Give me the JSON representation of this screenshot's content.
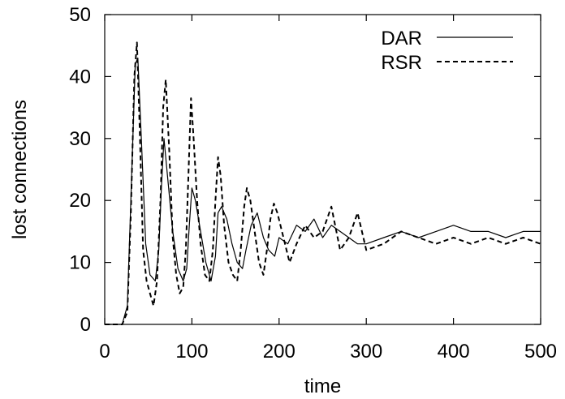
{
  "chart_data": {
    "type": "line",
    "title": "",
    "xlabel": "time",
    "ylabel": "lost connections",
    "xlim": [
      0,
      500
    ],
    "ylim": [
      0,
      50
    ],
    "xticks": [
      "0",
      "100",
      "200",
      "300",
      "400",
      "500"
    ],
    "yticks": [
      "0",
      "10",
      "20",
      "30",
      "40",
      "50"
    ],
    "grid": false,
    "legend_position": "top-right",
    "series": [
      {
        "name": "DAR",
        "style": "solid",
        "color": "#000000",
        "x": [
          0,
          10,
          20,
          26,
          30,
          35,
          38,
          42,
          47,
          52,
          58,
          62,
          65,
          68,
          72,
          78,
          84,
          90,
          94,
          97,
          100,
          104,
          110,
          116,
          122,
          127,
          130,
          134,
          140,
          146,
          152,
          158,
          162,
          168,
          175,
          182,
          188,
          195,
          200,
          210,
          220,
          230,
          240,
          250,
          260,
          270,
          280,
          290,
          300,
          320,
          340,
          360,
          380,
          400,
          420,
          440,
          460,
          480,
          500
        ],
        "y": [
          0,
          0,
          0,
          3,
          20,
          42,
          43,
          30,
          13,
          8,
          7,
          12,
          22,
          30,
          24,
          15,
          9,
          7,
          9,
          16,
          22,
          20,
          15,
          10,
          7,
          11,
          18,
          19,
          17,
          13,
          10,
          9,
          12,
          16,
          18,
          14,
          12,
          11,
          14,
          13,
          16,
          15,
          17,
          14,
          16,
          15,
          14,
          13,
          13,
          14,
          15,
          14,
          15,
          16,
          15,
          15,
          14,
          15,
          15
        ]
      },
      {
        "name": "RSR",
        "style": "dashed",
        "color": "#000000",
        "x": [
          0,
          10,
          20,
          26,
          30,
          34,
          37,
          40,
          44,
          48,
          52,
          56,
          60,
          64,
          67,
          70,
          74,
          78,
          82,
          86,
          90,
          93,
          96,
          99,
          102,
          106,
          110,
          115,
          120,
          124,
          127,
          130,
          133,
          137,
          142,
          147,
          152,
          156,
          160,
          163,
          167,
          172,
          177,
          182,
          186,
          190,
          194,
          198,
          205,
          212,
          220,
          230,
          240,
          250,
          260,
          270,
          280,
          290,
          300,
          320,
          340,
          360,
          380,
          400,
          420,
          440,
          460,
          480,
          500
        ],
        "y": [
          0,
          0,
          0,
          2,
          18,
          40,
          45.5,
          32,
          12,
          7,
          5,
          3,
          7,
          20,
          35,
          39.5,
          28,
          14,
          8,
          5,
          6,
          12,
          24,
          36.5,
          30,
          20,
          13,
          8,
          7,
          12,
          20,
          27,
          24,
          16,
          10,
          8,
          7,
          12,
          19,
          22,
          20,
          15,
          10,
          8,
          12,
          17,
          19.5,
          18,
          14,
          10,
          13,
          16,
          14,
          15,
          19,
          12,
          14,
          18,
          12,
          13,
          15,
          14,
          13,
          14,
          13,
          14,
          13,
          14,
          13
        ]
      }
    ]
  }
}
